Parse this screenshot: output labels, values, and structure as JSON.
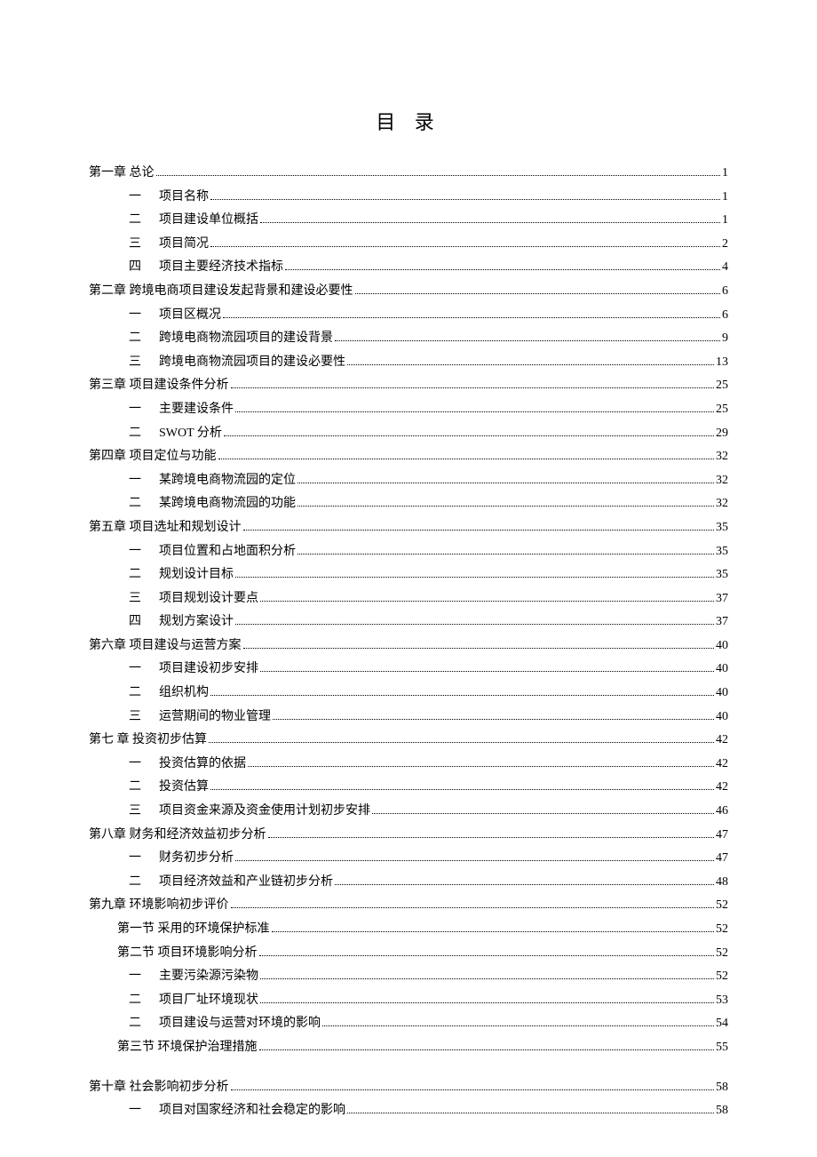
{
  "title": "目 录",
  "entries": [
    {
      "indent": "indent-0",
      "num": "",
      "text": "第一章 总论",
      "page": "1"
    },
    {
      "indent": "indent-1",
      "num": "一",
      "text": "项目名称",
      "page": "1"
    },
    {
      "indent": "indent-1",
      "num": "二",
      "text": "项目建设单位概括",
      "page": "1"
    },
    {
      "indent": "indent-1",
      "num": "三",
      "text": "项目简况",
      "page": "2"
    },
    {
      "indent": "indent-1",
      "num": "四",
      "text": "项目主要经济技术指标",
      "page": "4"
    },
    {
      "indent": "indent-0",
      "num": "",
      "text": "第二章   跨境电商项目建设发起背景和建设必要性",
      "page": "6"
    },
    {
      "indent": "indent-1",
      "num": "一",
      "text": "项目区概况",
      "page": "6"
    },
    {
      "indent": "indent-1",
      "num": "二",
      "text": "跨境电商物流园项目的建设背景",
      "page": "9"
    },
    {
      "indent": "indent-1",
      "num": "三",
      "text": "跨境电商物流园项目的建设必要性",
      "page": "13"
    },
    {
      "indent": "indent-0",
      "num": "",
      "text": "第三章   项目建设条件分析",
      "page": "25"
    },
    {
      "indent": "indent-1",
      "num": "一",
      "text": "主要建设条件",
      "page": "25"
    },
    {
      "indent": "indent-1",
      "num": "二",
      "text": "SWOT 分析",
      "page": "29"
    },
    {
      "indent": "indent-0",
      "num": "",
      "text": "第四章   项目定位与功能",
      "page": "32"
    },
    {
      "indent": "indent-1",
      "num": "一",
      "text": "某跨境电商物流园的定位",
      "page": "32"
    },
    {
      "indent": "indent-1",
      "num": "二",
      "text": "某跨境电商物流园的功能",
      "page": "32"
    },
    {
      "indent": "indent-0",
      "num": "",
      "text": "第五章  项目选址和规划设计",
      "page": "35"
    },
    {
      "indent": "indent-1",
      "num": "一",
      "text": "项目位置和占地面积分析",
      "page": "35"
    },
    {
      "indent": "indent-1",
      "num": "二",
      "text": "规划设计目标",
      "page": "35"
    },
    {
      "indent": "indent-1",
      "num": "三",
      "text": "项目规划设计要点",
      "page": "37"
    },
    {
      "indent": "indent-1",
      "num": "四",
      "text": "规划方案设计",
      "page": "37"
    },
    {
      "indent": "indent-0",
      "num": "",
      "text": "第六章   项目建设与运营方案",
      "page": "40"
    },
    {
      "indent": "indent-1",
      "num": "一",
      "text": "项目建设初步安排",
      "page": "40"
    },
    {
      "indent": "indent-1",
      "num": "二",
      "text": "组织机构",
      "page": "40"
    },
    {
      "indent": "indent-1",
      "num": "三",
      "text": "运营期间的物业管理",
      "page": "40"
    },
    {
      "indent": "indent-0",
      "num": "",
      "text": "第七 章 投资初步估算",
      "page": "42"
    },
    {
      "indent": "indent-1",
      "num": "一",
      "text": "投资估算的依据",
      "page": "42"
    },
    {
      "indent": "indent-1",
      "num": "二",
      "text": "投资估算",
      "page": "42"
    },
    {
      "indent": "indent-1",
      "num": "三",
      "text": "项目资金来源及资金使用计划初步安排",
      "page": "46"
    },
    {
      "indent": "indent-0",
      "num": "",
      "text": "第八章 财务和经济效益初步分析",
      "page": "47"
    },
    {
      "indent": "indent-1",
      "num": "一",
      "text": "财务初步分析",
      "page": "47"
    },
    {
      "indent": "indent-1",
      "num": "二",
      "text": "项目经济效益和产业链初步分析",
      "page": "48"
    },
    {
      "indent": "indent-0",
      "num": "",
      "text": "第九章 环境影响初步评价",
      "page": "52"
    },
    {
      "indent": "indent-section",
      "num": "",
      "text": "第一节 采用的环境保护标准",
      "page": "52"
    },
    {
      "indent": "indent-section",
      "num": "",
      "text": "第二节  项目环境影响分析",
      "page": "52"
    },
    {
      "indent": "indent-1",
      "num": "一",
      "text": "主要污染源污染物",
      "page": "52"
    },
    {
      "indent": "indent-1",
      "num": "二",
      "text": "项目厂址环境现状",
      "page": "53"
    },
    {
      "indent": "indent-1",
      "num": "二",
      "text": "项目建设与运营对环境的影响",
      "page": "54"
    },
    {
      "indent": "indent-section",
      "num": "",
      "text": "第三节  环境保护治理措施",
      "page": "55"
    },
    {
      "spacer": true
    },
    {
      "indent": "indent-0",
      "num": "",
      "text": "第十章   社会影响初步分析",
      "page": "58"
    },
    {
      "indent": "indent-1",
      "num": "一",
      "text": "项目对国家经济和社会稳定的影响",
      "page": "58"
    }
  ]
}
